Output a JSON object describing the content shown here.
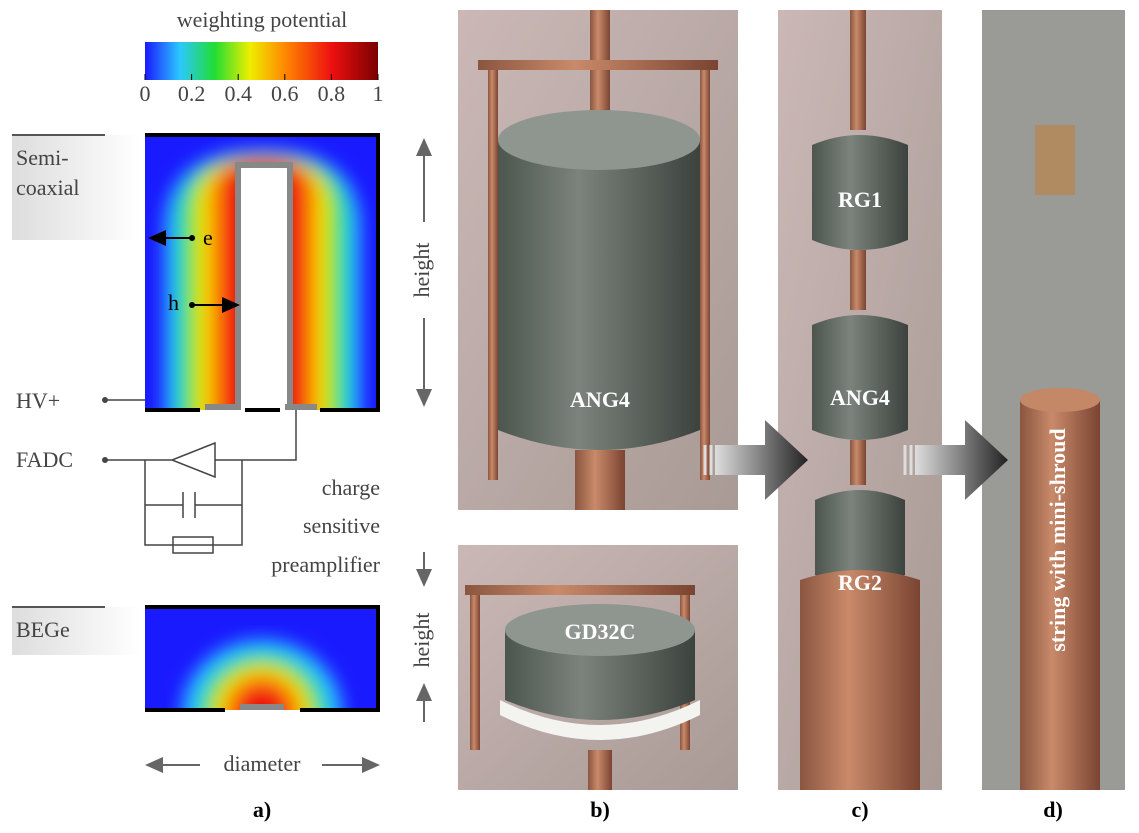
{
  "panel_a": {
    "colorbar": {
      "title": "weighting potential",
      "ticks": [
        0,
        0.2,
        0.4,
        0.6,
        0.8,
        1
      ],
      "range": [
        0,
        1
      ]
    },
    "semi_coaxial": {
      "label": [
        "Semi-",
        "coaxial"
      ],
      "e": "e",
      "h": "h",
      "height": "height"
    },
    "circuit": {
      "hv": "HV+",
      "fadc": "FADC",
      "preamp": [
        "charge",
        "sensitive",
        "preamplifier"
      ]
    },
    "bege": {
      "label": "BEGe",
      "height": "height",
      "diameter": "diameter"
    },
    "caption": "a)"
  },
  "panel_b": {
    "top_label": "ANG4",
    "bottom_label": "GD32C",
    "caption": "b)"
  },
  "panel_c": {
    "labels": [
      "RG1",
      "ANG4",
      "RG2"
    ],
    "caption": "c)"
  },
  "panel_d": {
    "label": "string with mini-shroud",
    "caption": "d)"
  }
}
